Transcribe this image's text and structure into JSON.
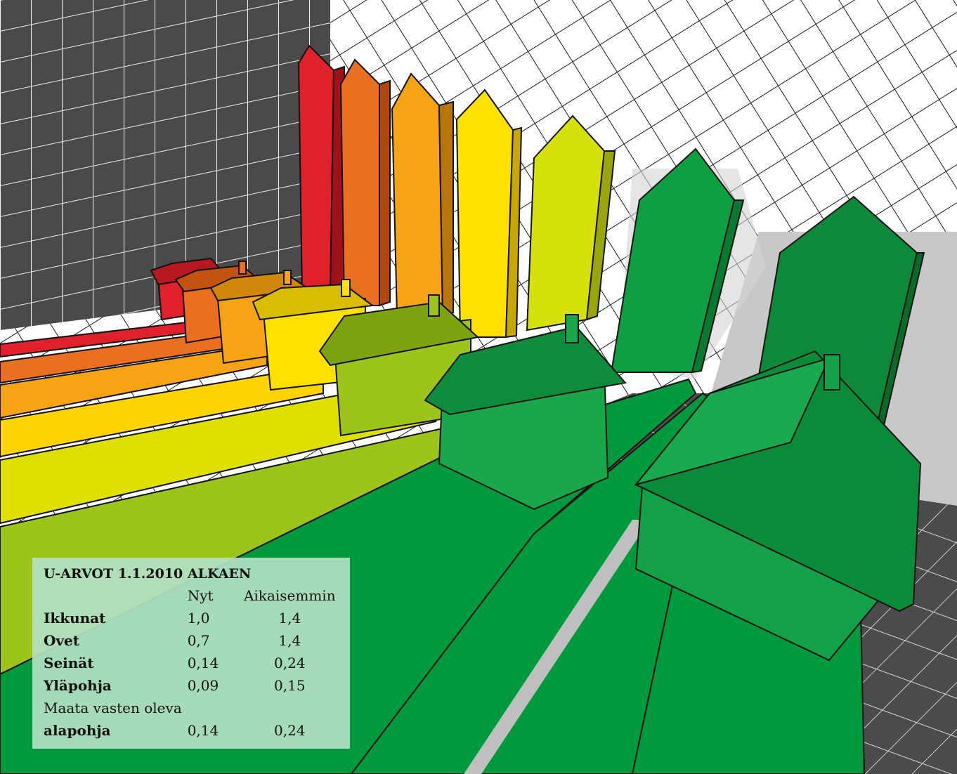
{
  "colors": {
    "class_a": "#009a3e",
    "class_a_dark": "#0c8a3a",
    "class_b": "#9dc41a",
    "class_c": "#e0e000",
    "class_d": "#ffd400",
    "class_e": "#f6a413",
    "class_f": "#ea6f1e",
    "class_g": "#e0202a",
    "dark_wall": "#4a4a4a",
    "box_background": "#b2e0c4"
  },
  "uvalues": {
    "title": "U-ARVOT 1.1.2010 ALKAEN",
    "col_now": "Nyt",
    "col_before": "Aikaisemmin",
    "rows": [
      {
        "label": "Ikkunat",
        "now": "1,0",
        "before": "1,4",
        "bold": true
      },
      {
        "label": "Ovet",
        "now": "0,7",
        "before": "1,4",
        "bold": true
      },
      {
        "label": "Seinät",
        "now": "0,14",
        "before": "0,24",
        "bold": true
      },
      {
        "label": "Yläpohja",
        "now": "0,09",
        "before": "0,15",
        "bold": true
      },
      {
        "label": "Maata vasten oleva",
        "now": "",
        "before": "",
        "bold": false
      },
      {
        "label": "alapohja",
        "now": "0,14",
        "before": "0,24",
        "bold": true
      }
    ]
  }
}
